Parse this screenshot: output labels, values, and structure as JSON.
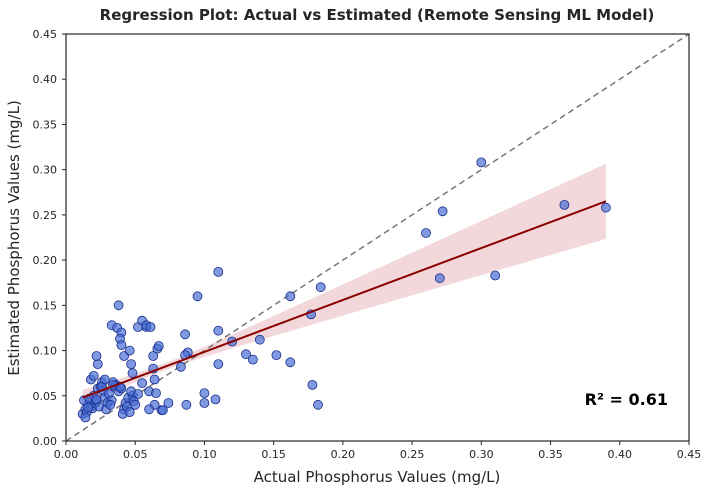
{
  "chart_data": {
    "type": "scatter",
    "title": "Regression Plot: Actual vs Estimated (Remote Sensing ML Model)",
    "xlabel": "Actual Phosphorus Values (mg/L)",
    "ylabel": "Estimated Phosphorus Values (mg/L)",
    "xlim": [
      0,
      0.45
    ],
    "ylim": [
      0,
      0.45
    ],
    "xticks": [
      "0.00",
      "0.05",
      "0.10",
      "0.15",
      "0.20",
      "0.25",
      "0.30",
      "0.35",
      "0.40",
      "0.45"
    ],
    "yticks": [
      "0.00",
      "0.05",
      "0.10",
      "0.15",
      "0.20",
      "0.25",
      "0.30",
      "0.35",
      "0.40",
      "0.45"
    ],
    "grid": false,
    "annotation": "R² = 0.61",
    "colors": {
      "points_fill": "#4a6fd6",
      "points_edge": "#1a2d8a",
      "regression_line": "#8b0000",
      "confidence_band": "#d98f96",
      "identity_line": "#777777"
    },
    "identity_line": {
      "x": [
        0,
        0.45
      ],
      "y": [
        0,
        0.45
      ]
    },
    "regression": {
      "x_range": [
        0.012,
        0.39
      ],
      "start": 0.048,
      "end": 0.265,
      "ci_lower_end": 0.222,
      "ci_upper_end": 0.305,
      "ci_half_width_min": 0.004
    },
    "points": {
      "x": [
        0.012,
        0.014,
        0.016,
        0.018,
        0.013,
        0.015,
        0.017,
        0.019,
        0.021,
        0.02,
        0.022,
        0.024,
        0.023,
        0.025,
        0.027,
        0.026,
        0.028,
        0.03,
        0.029,
        0.031,
        0.033,
        0.032,
        0.035,
        0.034,
        0.036,
        0.038,
        0.04,
        0.042,
        0.041,
        0.043,
        0.045,
        0.044,
        0.046,
        0.048,
        0.047,
        0.049,
        0.05,
        0.052,
        0.018,
        0.02,
        0.023,
        0.022,
        0.026,
        0.028,
        0.033,
        0.037,
        0.04,
        0.047,
        0.052,
        0.058,
        0.063,
        0.066,
        0.038,
        0.039,
        0.04,
        0.042,
        0.055,
        0.058,
        0.061,
        0.064,
        0.067,
        0.039,
        0.034,
        0.048,
        0.046,
        0.06,
        0.064,
        0.069,
        0.074,
        0.083,
        0.086,
        0.087,
        0.095,
        0.088,
        0.1,
        0.11,
        0.12,
        0.13,
        0.135,
        0.14,
        0.11,
        0.11,
        0.086,
        0.07,
        0.06,
        0.055,
        0.063,
        0.065,
        0.108,
        0.1,
        0.152,
        0.162,
        0.162,
        0.177,
        0.178,
        0.182,
        0.184,
        0.26,
        0.27,
        0.272,
        0.3,
        0.31,
        0.36,
        0.39,
        0.016,
        0.022,
        0.014
      ],
      "y": [
        0.03,
        0.035,
        0.04,
        0.038,
        0.045,
        0.032,
        0.047,
        0.036,
        0.042,
        0.05,
        0.044,
        0.038,
        0.058,
        0.06,
        0.055,
        0.065,
        0.048,
        0.042,
        0.035,
        0.052,
        0.045,
        0.04,
        0.06,
        0.065,
        0.062,
        0.055,
        0.058,
        0.035,
        0.03,
        0.042,
        0.048,
        0.038,
        0.032,
        0.05,
        0.055,
        0.044,
        0.04,
        0.052,
        0.068,
        0.072,
        0.085,
        0.094,
        0.06,
        0.068,
        0.128,
        0.125,
        0.12,
        0.085,
        0.126,
        0.126,
        0.094,
        0.102,
        0.15,
        0.113,
        0.106,
        0.094,
        0.133,
        0.128,
        0.126,
        0.068,
        0.105,
        0.06,
        0.062,
        0.075,
        0.1,
        0.055,
        0.04,
        0.034,
        0.042,
        0.082,
        0.118,
        0.04,
        0.16,
        0.098,
        0.053,
        0.122,
        0.11,
        0.096,
        0.09,
        0.112,
        0.187,
        0.085,
        0.095,
        0.034,
        0.035,
        0.064,
        0.08,
        0.053,
        0.046,
        0.042,
        0.095,
        0.16,
        0.087,
        0.14,
        0.062,
        0.04,
        0.17,
        0.23,
        0.18,
        0.254,
        0.308,
        0.183,
        0.261,
        0.258,
        0.037,
        0.046,
        0.026
      ]
    }
  }
}
